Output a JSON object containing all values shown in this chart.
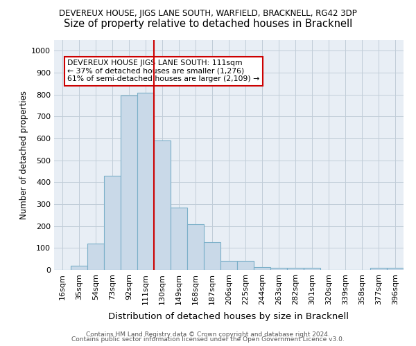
{
  "title1": "DEVEREUX HOUSE, JIGS LANE SOUTH, WARFIELD, BRACKNELL, RG42 3DP",
  "title2": "Size of property relative to detached houses in Bracknell",
  "xlabel": "Distribution of detached houses by size in Bracknell",
  "ylabel": "Number of detached properties",
  "footer1": "Contains HM Land Registry data © Crown copyright and database right 2024.",
  "footer2": "Contains public sector information licensed under the Open Government Licence v3.0.",
  "bar_labels": [
    "16sqm",
    "35sqm",
    "54sqm",
    "73sqm",
    "92sqm",
    "111sqm",
    "130sqm",
    "149sqm",
    "168sqm",
    "187sqm",
    "206sqm",
    "225sqm",
    "244sqm",
    "263sqm",
    "282sqm",
    "301sqm",
    "320sqm",
    "339sqm",
    "358sqm",
    "377sqm",
    "396sqm"
  ],
  "bar_values": [
    0,
    18,
    120,
    430,
    795,
    810,
    590,
    285,
    210,
    125,
    40,
    40,
    12,
    10,
    8,
    8,
    0,
    0,
    0,
    8,
    8
  ],
  "bar_color": "#c9d9e8",
  "bar_edge_color": "#7aafc8",
  "vline_x": 5.5,
  "vline_color": "#cc0000",
  "annotation_text": "DEVEREUX HOUSE JIGS LANE SOUTH: 111sqm\n← 37% of detached houses are smaller (1,276)\n61% of semi-detached houses are larger (2,109) →",
  "annotation_box_color": "#ffffff",
  "annotation_box_edge": "#cc0000",
  "ylim": [
    0,
    1050
  ],
  "yticks": [
    0,
    100,
    200,
    300,
    400,
    500,
    600,
    700,
    800,
    900,
    1000
  ],
  "ax_bg_color": "#e8eef5",
  "bg_color": "#ffffff",
  "grid_color": "#c0ccd8",
  "title1_fontsize": 8.5,
  "title2_fontsize": 10.5,
  "ylabel_fontsize": 8.5,
  "xlabel_fontsize": 9.5,
  "tick_fontsize": 8.0,
  "footer_fontsize": 6.5
}
